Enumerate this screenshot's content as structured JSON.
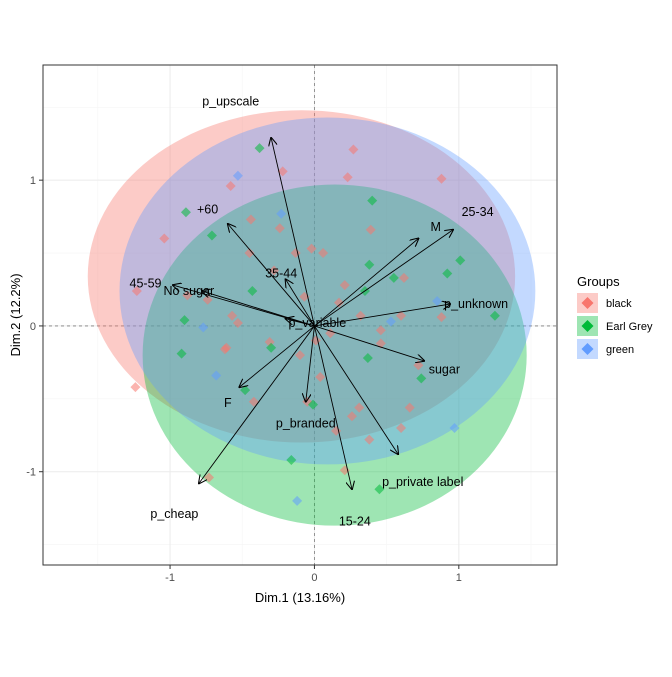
{
  "chart_data": {
    "type": "scatter",
    "title": "",
    "xlabel": "Dim.1 (13.16%)",
    "ylabel": "Dim.2 (12.2%)",
    "xlim": [
      -1.88,
      1.68
    ],
    "ylim": [
      -1.64,
      1.79
    ],
    "x_ticks": [
      -1,
      0,
      1
    ],
    "y_ticks": [
      -1,
      0,
      1
    ],
    "grid": true,
    "legend": {
      "title": "Groups",
      "position": "right",
      "entries": [
        {
          "name": "black",
          "color": "#F8766D"
        },
        {
          "name": "Earl Grey",
          "color": "#00BA38"
        },
        {
          "name": "green",
          "color": "#619CFF"
        }
      ]
    },
    "ellipses": [
      {
        "group": "black",
        "cx": -0.09,
        "cy": 0.34,
        "rx": 1.48,
        "ry": 1.14,
        "color": "#F8766D"
      },
      {
        "group": "Earl Grey",
        "cx": 0.14,
        "cy": -0.2,
        "rx": 1.33,
        "ry": 1.17,
        "color": "#00BA38"
      },
      {
        "group": "green",
        "cx": 0.09,
        "cy": 0.24,
        "rx": 1.44,
        "ry": 1.19,
        "color": "#619CFF"
      }
    ],
    "points": [
      {
        "x": -0.38,
        "y": 1.22,
        "group": "Earl Grey"
      },
      {
        "x": 0.27,
        "y": 1.21,
        "group": "black"
      },
      {
        "x": -0.22,
        "y": 1.06,
        "group": "black"
      },
      {
        "x": -0.53,
        "y": 1.03,
        "group": "green"
      },
      {
        "x": 0.23,
        "y": 1.02,
        "group": "black"
      },
      {
        "x": 0.88,
        "y": 1.01,
        "group": "black"
      },
      {
        "x": -0.58,
        "y": 0.96,
        "group": "black"
      },
      {
        "x": 0.4,
        "y": 0.86,
        "group": "Earl Grey"
      },
      {
        "x": -0.89,
        "y": 0.78,
        "group": "Earl Grey"
      },
      {
        "x": -0.23,
        "y": 0.77,
        "group": "green"
      },
      {
        "x": -0.44,
        "y": 0.73,
        "group": "black"
      },
      {
        "x": -0.24,
        "y": 0.67,
        "group": "black"
      },
      {
        "x": 0.39,
        "y": 0.66,
        "group": "black"
      },
      {
        "x": -0.71,
        "y": 0.62,
        "group": "Earl Grey"
      },
      {
        "x": -1.04,
        "y": 0.6,
        "group": "black"
      },
      {
        "x": -0.45,
        "y": 0.5,
        "group": "black"
      },
      {
        "x": -0.02,
        "y": 0.53,
        "group": "black"
      },
      {
        "x": -0.13,
        "y": 0.5,
        "group": "black"
      },
      {
        "x": 0.06,
        "y": 0.5,
        "group": "black"
      },
      {
        "x": -0.28,
        "y": 0.38,
        "group": "black"
      },
      {
        "x": 0.38,
        "y": 0.42,
        "group": "Earl Grey"
      },
      {
        "x": 1.01,
        "y": 0.45,
        "group": "Earl Grey"
      },
      {
        "x": 0.92,
        "y": 0.36,
        "group": "Earl Grey"
      },
      {
        "x": 0.55,
        "y": 0.33,
        "group": "Earl Grey"
      },
      {
        "x": 0.62,
        "y": 0.33,
        "group": "black"
      },
      {
        "x": 0.21,
        "y": 0.28,
        "group": "black"
      },
      {
        "x": 0.35,
        "y": 0.24,
        "group": "Earl Grey"
      },
      {
        "x": -1.23,
        "y": 0.24,
        "group": "black"
      },
      {
        "x": -0.88,
        "y": 0.21,
        "group": "black"
      },
      {
        "x": -0.43,
        "y": 0.24,
        "group": "Earl Grey"
      },
      {
        "x": -0.74,
        "y": 0.18,
        "group": "black"
      },
      {
        "x": 0.85,
        "y": 0.17,
        "group": "green"
      },
      {
        "x": -0.07,
        "y": 0.2,
        "group": "black"
      },
      {
        "x": 0.17,
        "y": 0.16,
        "group": "black"
      },
      {
        "x": 0.32,
        "y": 0.07,
        "group": "black"
      },
      {
        "x": 0.6,
        "y": 0.07,
        "group": "black"
      },
      {
        "x": 0.88,
        "y": 0.06,
        "group": "black"
      },
      {
        "x": 1.25,
        "y": 0.07,
        "group": "Earl Grey"
      },
      {
        "x": -0.57,
        "y": 0.07,
        "group": "black"
      },
      {
        "x": -0.9,
        "y": 0.04,
        "group": "Earl Grey"
      },
      {
        "x": -0.53,
        "y": 0.02,
        "group": "black"
      },
      {
        "x": -0.77,
        "y": -0.01,
        "group": "green"
      },
      {
        "x": 0.53,
        "y": 0.03,
        "group": "green"
      },
      {
        "x": 0.11,
        "y": -0.05,
        "group": "black"
      },
      {
        "x": 0.46,
        "y": -0.03,
        "group": "black"
      },
      {
        "x": 0.01,
        "y": -0.1,
        "group": "black"
      },
      {
        "x": -0.31,
        "y": -0.11,
        "group": "black"
      },
      {
        "x": -0.61,
        "y": -0.15,
        "group": "black"
      },
      {
        "x": -0.92,
        "y": -0.19,
        "group": "Earl Grey"
      },
      {
        "x": -0.3,
        "y": -0.15,
        "group": "Earl Grey"
      },
      {
        "x": 0.46,
        "y": -0.12,
        "group": "black"
      },
      {
        "x": -0.62,
        "y": -0.16,
        "group": "black"
      },
      {
        "x": -0.1,
        "y": -0.2,
        "group": "black"
      },
      {
        "x": 0.37,
        "y": -0.22,
        "group": "Earl Grey"
      },
      {
        "x": 0.72,
        "y": -0.27,
        "group": "black"
      },
      {
        "x": 0.04,
        "y": -0.35,
        "group": "black"
      },
      {
        "x": -0.68,
        "y": -0.34,
        "group": "green"
      },
      {
        "x": 0.74,
        "y": -0.36,
        "group": "Earl Grey"
      },
      {
        "x": -1.24,
        "y": -0.42,
        "group": "black"
      },
      {
        "x": -0.48,
        "y": -0.44,
        "group": "Earl Grey"
      },
      {
        "x": -0.42,
        "y": -0.52,
        "group": "black"
      },
      {
        "x": -0.05,
        "y": -0.52,
        "group": "black"
      },
      {
        "x": -0.01,
        "y": -0.54,
        "group": "Earl Grey"
      },
      {
        "x": 0.31,
        "y": -0.56,
        "group": "black"
      },
      {
        "x": 0.66,
        "y": -0.56,
        "group": "black"
      },
      {
        "x": 0.26,
        "y": -0.62,
        "group": "black"
      },
      {
        "x": 0.15,
        "y": -0.72,
        "group": "black"
      },
      {
        "x": 0.97,
        "y": -0.7,
        "group": "green"
      },
      {
        "x": 0.6,
        "y": -0.7,
        "group": "black"
      },
      {
        "x": 0.38,
        "y": -0.78,
        "group": "black"
      },
      {
        "x": -0.16,
        "y": -0.92,
        "group": "Earl Grey"
      },
      {
        "x": 0.21,
        "y": -0.99,
        "group": "black"
      },
      {
        "x": -0.73,
        "y": -1.04,
        "group": "black"
      },
      {
        "x": 0.45,
        "y": -1.12,
        "group": "Earl Grey"
      },
      {
        "x": -0.12,
        "y": -1.2,
        "group": "green"
      }
    ],
    "variables": [
      {
        "label": "p_upscale",
        "x": -0.3,
        "y": 1.29,
        "lx": -0.58,
        "ly": 1.54
      },
      {
        "label": "25-34",
        "x": 0.96,
        "y": 0.66,
        "lx": 1.13,
        "ly": 0.78
      },
      {
        "label": "M",
        "x": 0.72,
        "y": 0.6,
        "lx": 0.84,
        "ly": 0.68
      },
      {
        "label": "+60",
        "x": -0.6,
        "y": 0.7,
        "lx": -0.74,
        "ly": 0.8
      },
      {
        "label": "35-44",
        "x": -0.2,
        "y": 0.32,
        "lx": -0.23,
        "ly": 0.36
      },
      {
        "label": "45-59",
        "x": -0.98,
        "y": 0.28,
        "lx": -1.17,
        "ly": 0.29
      },
      {
        "label": "No sugar",
        "x": -0.78,
        "y": 0.24,
        "lx": -0.87,
        "ly": 0.24
      },
      {
        "label": "p_unknown",
        "x": 0.94,
        "y": 0.15,
        "lx": 1.12,
        "ly": 0.15
      },
      {
        "label": "p_variable",
        "x": -0.2,
        "y": 0.05,
        "lx": 0.02,
        "ly": 0.02
      },
      {
        "label": "sugar",
        "x": 0.76,
        "y": -0.24,
        "lx": 0.9,
        "ly": -0.3
      },
      {
        "label": "F",
        "x": -0.52,
        "y": -0.42,
        "lx": -0.6,
        "ly": -0.53
      },
      {
        "label": "p_branded",
        "x": -0.06,
        "y": -0.52,
        "lx": -0.06,
        "ly": -0.67
      },
      {
        "label": "p_private label",
        "x": 0.58,
        "y": -0.88,
        "lx": 0.75,
        "ly": -1.07
      },
      {
        "label": "p_cheap",
        "x": -0.8,
        "y": -1.08,
        "lx": -0.97,
        "ly": -1.29
      },
      {
        "label": "15-24",
        "x": 0.26,
        "y": -1.12,
        "lx": 0.28,
        "ly": -1.34
      }
    ]
  }
}
